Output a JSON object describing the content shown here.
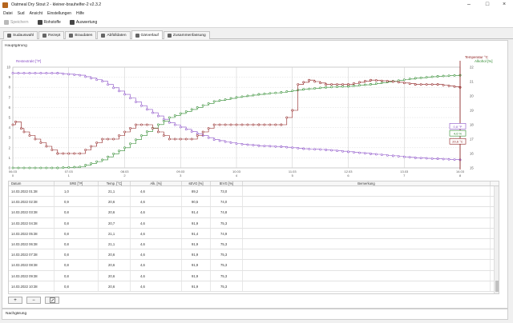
{
  "window": {
    "title": "Oatmeal Dry Stout 2 - kleiner-brauhelfer-2 v2.3.2"
  },
  "menu": [
    "Datei",
    "Sud",
    "Ansicht",
    "Einstellungen",
    "Hilfe"
  ],
  "toolbar": {
    "save": "Speichern",
    "rohstoffe": "Rohstoffe",
    "auswertung": "Auswertung"
  },
  "tabs": [
    {
      "label": "Sudauswahl",
      "active": false
    },
    {
      "label": "Rezept",
      "active": false
    },
    {
      "label": "Braudaten",
      "active": false
    },
    {
      "label": "Abfülldaten",
      "active": false
    },
    {
      "label": "Gärverlauf",
      "active": true
    },
    {
      "label": "Zusammenfassung",
      "active": false
    }
  ],
  "section": {
    "main": "Hauptgärung",
    "post": "Nachgärung"
  },
  "chart_data": {
    "type": "line",
    "ylabel_left": "Restextrakt [°P]",
    "ylabel_right1": "Temperatur °C",
    "ylabel_right2": "Alkohol [%]",
    "y_left_ticks": [
      "0",
      "1",
      "2",
      "3",
      "4",
      "5",
      "6",
      "7",
      "8",
      "9",
      "10"
    ],
    "y_right_ticks": [
      "15",
      "16",
      "17",
      "18",
      "19",
      "20",
      "21",
      "22"
    ],
    "x_ticks": [
      {
        "date": "06.03",
        "day": "0"
      },
      {
        "date": "07.03",
        "day": "1"
      },
      {
        "date": "08.03",
        "day": "2"
      },
      {
        "date": "09.03",
        "day": "3"
      },
      {
        "date": "10.03",
        "day": "4"
      },
      {
        "date": "11.03",
        "day": "5"
      },
      {
        "date": "12.03",
        "day": "6"
      },
      {
        "date": "13.03",
        "day": "7"
      },
      {
        "date": "14.03",
        "day": "8"
      }
    ],
    "xlim": [
      0,
      8
    ],
    "ylim_left": [
      0,
      10
    ],
    "ylim_right": [
      15,
      22
    ],
    "marker_labels": {
      "extract": "0,8 °P",
      "alcohol": "4,6 %",
      "temperature": "20,6 °C"
    },
    "series": [
      {
        "name": "Restextrakt [°P]",
        "color": "#8a4fc7",
        "x": [
          0,
          0.4,
          0.8,
          1.2,
          1.6,
          2.0,
          2.4,
          2.8,
          3.2,
          3.6,
          4.0,
          4.4,
          4.8,
          5.2,
          5.6,
          6.0,
          6.4,
          6.8,
          7.2,
          7.6,
          8.0
        ],
        "y": [
          9.4,
          9.4,
          9.4,
          9.2,
          8.6,
          7.3,
          5.8,
          4.5,
          3.6,
          2.8,
          2.4,
          2.2,
          2.1,
          1.9,
          1.8,
          1.6,
          1.4,
          1.2,
          1.0,
          0.9,
          0.8
        ]
      },
      {
        "name": "Alkohol [%]",
        "color": "#2f8a2f",
        "x": [
          0,
          0.4,
          0.8,
          1.2,
          1.6,
          2.0,
          2.4,
          2.8,
          3.2,
          3.6,
          4.0,
          4.4,
          4.8,
          5.2,
          5.6,
          6.0,
          6.4,
          6.8,
          7.2,
          7.6,
          8.0
        ],
        "y": [
          0.0,
          0.0,
          0.0,
          0.05,
          0.4,
          1.0,
          1.8,
          2.5,
          2.9,
          3.3,
          3.5,
          3.65,
          3.75,
          3.9,
          4.0,
          4.05,
          4.15,
          4.3,
          4.45,
          4.55,
          4.6
        ]
      },
      {
        "name": "Temperatur °C",
        "color": "#8b1a1a",
        "x": [
          0,
          0.05,
          0.2,
          0.4,
          0.6,
          0.8,
          1.0,
          1.2,
          1.4,
          1.6,
          1.8,
          2.0,
          2.2,
          2.4,
          2.6,
          2.8,
          3.0,
          3.2,
          3.4,
          3.6,
          3.8,
          4.0,
          4.4,
          4.8,
          5.0,
          5.1,
          5.3,
          5.6,
          6.0,
          6.4,
          6.8,
          7.2,
          7.6,
          8.0
        ],
        "y": [
          18.0,
          18.2,
          17.5,
          17.0,
          16.5,
          16.0,
          16.0,
          16.0,
          16.5,
          17.0,
          17.0,
          17.5,
          18.0,
          18.0,
          17.5,
          17.0,
          17.0,
          17.0,
          17.5,
          18.0,
          18.0,
          18.0,
          18.0,
          18.0,
          19.0,
          20.8,
          21.1,
          20.8,
          20.8,
          21.1,
          21.0,
          20.8,
          20.8,
          20.6
        ]
      }
    ]
  },
  "table": {
    "columns": [
      "Datum",
      "SRE [°P]",
      "Temp. [°C]",
      "Alk. [%]",
      "sEVG [%]",
      "tEVG [%]",
      "Bemerkung"
    ],
    "rows": [
      [
        "14.03.2022 01:38",
        "1,0",
        "21,1",
        "4,6",
        "89,2",
        "73,0",
        ""
      ],
      [
        "14.03.2022 02:38",
        "0,9",
        "20,6",
        "4,6",
        "90,5",
        "74,0",
        ""
      ],
      [
        "14.03.2022 03:38",
        "0,8",
        "20,6",
        "4,6",
        "91,4",
        "74,8",
        ""
      ],
      [
        "14.03.2022 04:38",
        "0,8",
        "20,7",
        "4,6",
        "91,9",
        "75,3",
        ""
      ],
      [
        "14.03.2022 05:38",
        "0,8",
        "21,1",
        "4,6",
        "91,4",
        "74,9",
        ""
      ],
      [
        "14.03.2022 06:38",
        "0,8",
        "21,1",
        "4,6",
        "91,9",
        "75,3",
        ""
      ],
      [
        "14.03.2022 07:38",
        "0,8",
        "20,6",
        "4,6",
        "91,9",
        "75,3",
        ""
      ],
      [
        "14.03.2022 08:38",
        "0,8",
        "20,6",
        "4,6",
        "91,9",
        "75,3",
        ""
      ],
      [
        "14.03.2022 09:38",
        "0,8",
        "20,6",
        "4,6",
        "91,9",
        "75,3",
        ""
      ],
      [
        "14.03.2022 10:38",
        "0,8",
        "20,6",
        "4,6",
        "91,9",
        "75,3",
        ""
      ]
    ]
  },
  "buttons": {
    "add": "+",
    "remove": "−"
  }
}
